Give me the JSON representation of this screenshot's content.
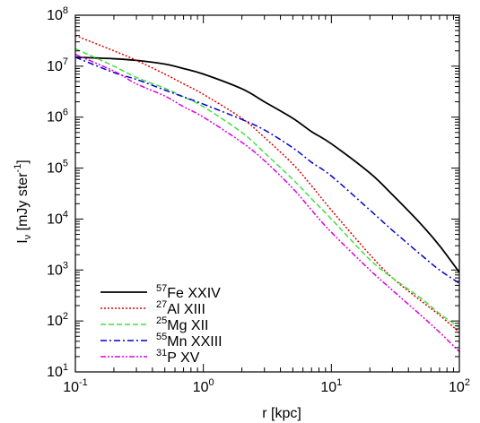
{
  "chart_data": {
    "type": "line",
    "x_scale": "log",
    "y_scale": "log",
    "xlim": [
      0.1,
      100
    ],
    "ylim": [
      10,
      100000000
    ],
    "xlabel": "r [kpc]",
    "ylabel": {
      "main": "I",
      "sub": "ν",
      "rest": " [mJy ster",
      "sup": "-1",
      "end": "]"
    },
    "x_ticks": [
      {
        "value": 0.1,
        "base": "10",
        "exp": "-1"
      },
      {
        "value": 1,
        "base": "10",
        "exp": "0"
      },
      {
        "value": 10,
        "base": "10",
        "exp": "1"
      },
      {
        "value": 100,
        "base": "10",
        "exp": "2"
      }
    ],
    "y_ticks": [
      {
        "value": 10,
        "base": "10",
        "exp": "1"
      },
      {
        "value": 100,
        "base": "10",
        "exp": "2"
      },
      {
        "value": 1000,
        "base": "10",
        "exp": "3"
      },
      {
        "value": 10000,
        "base": "10",
        "exp": "4"
      },
      {
        "value": 100000,
        "base": "10",
        "exp": "5"
      },
      {
        "value": 1000000,
        "base": "10",
        "exp": "6"
      },
      {
        "value": 10000000,
        "base": "10",
        "exp": "7"
      },
      {
        "value": 100000000,
        "base": "10",
        "exp": "8"
      }
    ],
    "grid": false,
    "legend_position": "bottom-left",
    "series": [
      {
        "name": "Fe XXIV",
        "sup": "57",
        "color": "#000000",
        "dash": "solid",
        "x": [
          0.1,
          0.2,
          0.3,
          0.5,
          0.7,
          1,
          2,
          3,
          5,
          7,
          10,
          20,
          30,
          50,
          70,
          100
        ],
        "y": [
          15000000,
          14000000,
          13000000,
          11000000,
          9000000,
          7000000,
          3600000,
          2000000,
          950000,
          520000,
          300000,
          80000,
          30000,
          8000,
          3000,
          900
        ]
      },
      {
        "name": "Al XIII",
        "sup": "27",
        "color": "#dd0000",
        "dash": "dot",
        "x": [
          0.1,
          0.2,
          0.3,
          0.5,
          0.7,
          1,
          2,
          3,
          5,
          7,
          10,
          20,
          30,
          50,
          70,
          100
        ],
        "y": [
          40000000,
          20000000,
          13000000,
          7000000,
          4500000,
          2800000,
          950000,
          400000,
          120000,
          45000,
          15000,
          2000,
          700,
          250,
          130,
          60
        ]
      },
      {
        "name": "Mg XII",
        "sup": "25",
        "color": "#44dd44",
        "dash": "dash",
        "x": [
          0.1,
          0.2,
          0.3,
          0.5,
          0.7,
          1,
          2,
          3,
          5,
          7,
          10,
          20,
          30,
          50,
          70,
          100
        ],
        "y": [
          22000000,
          10000000,
          6000000,
          3700000,
          2500000,
          1600000,
          500000,
          200000,
          60000,
          25000,
          10000,
          1600,
          700,
          280,
          140,
          75
        ]
      },
      {
        "name": "Mn XXIII",
        "sup": "55",
        "color": "#0000cc",
        "dash": "dashdot",
        "x": [
          0.1,
          0.2,
          0.3,
          0.5,
          0.7,
          1,
          2,
          3,
          5,
          7,
          10,
          20,
          30,
          50,
          70,
          100
        ],
        "y": [
          15000000,
          7500000,
          5500000,
          3400000,
          2500000,
          1800000,
          900000,
          560000,
          250000,
          130000,
          70000,
          15000,
          6000,
          2000,
          1000,
          550
        ]
      },
      {
        "name": "P XV",
        "sup": "31",
        "color": "#dd00dd",
        "dash": "dashdotdot",
        "x": [
          0.1,
          0.2,
          0.3,
          0.5,
          0.7,
          1,
          2,
          3,
          5,
          7,
          10,
          20,
          30,
          50,
          70,
          100
        ],
        "y": [
          17000000,
          8000000,
          4500000,
          2600000,
          1600000,
          1000000,
          320000,
          140000,
          40000,
          15000,
          5500,
          1000,
          400,
          130,
          60,
          25
        ]
      }
    ]
  }
}
